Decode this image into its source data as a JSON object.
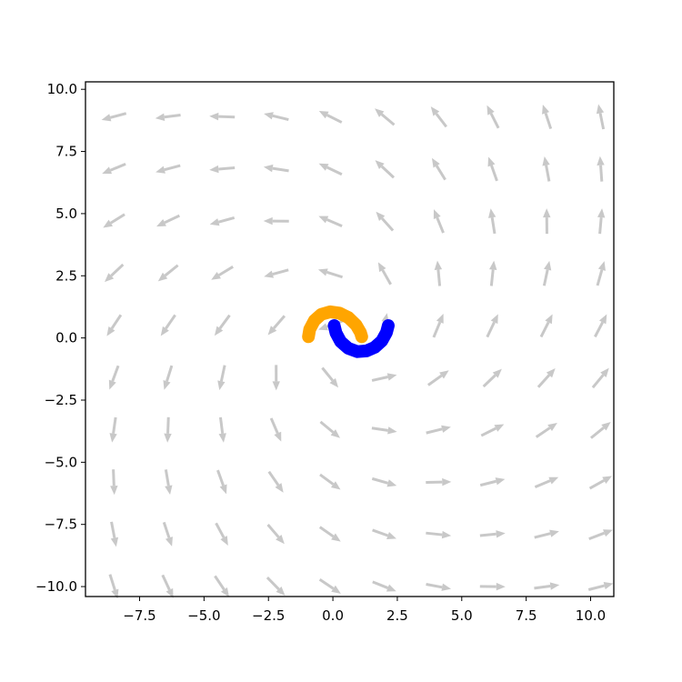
{
  "chart_data": {
    "type": "quiver",
    "title": "",
    "xlabel": "",
    "ylabel": "",
    "xlim": [
      -9.6,
      10.9
    ],
    "ylim": [
      -10.4,
      10.3
    ],
    "xticks": [
      -7.5,
      -5.0,
      -2.5,
      0.0,
      2.5,
      5.0,
      7.5,
      10.0
    ],
    "yticks": [
      -10.0,
      -7.5,
      -5.0,
      -2.5,
      0.0,
      2.5,
      5.0,
      7.5,
      10.0
    ],
    "xtick_labels": [
      "−7.5",
      "−5.0",
      "−2.5",
      "0.0",
      "2.5",
      "5.0",
      "7.5",
      "10.0"
    ],
    "ytick_labels": [
      "−10.0",
      "−7.5",
      "−5.0",
      "−2.5",
      "0.0",
      "2.5",
      "5.0",
      "7.5",
      "10.0"
    ],
    "grid": false,
    "legend": false,
    "vector_field": {
      "color": "#c8c8c8",
      "x": [
        -8.5,
        -6.4,
        -4.3,
        -2.2,
        -0.1,
        2.0,
        4.1,
        6.2,
        8.3,
        10.4
      ],
      "y": [
        -10.0,
        -7.9,
        -5.8,
        -3.7,
        -1.6,
        0.5,
        2.6,
        4.7,
        6.8,
        8.9
      ],
      "center": [
        0.5,
        0.0
      ]
    },
    "series": [
      {
        "color": "#ffa500",
        "x": [
          -0.95,
          -0.9,
          -0.72,
          -0.45,
          -0.1,
          0.25,
          0.6,
          0.9,
          1.07,
          1.12
        ],
        "y": [
          0.05,
          0.35,
          0.7,
          0.95,
          1.05,
          1.0,
          0.82,
          0.52,
          0.22,
          0.05
        ]
      },
      {
        "color": "#0000ff",
        "x": [
          0.05,
          0.12,
          0.3,
          0.6,
          0.95,
          1.3,
          1.62,
          1.9,
          2.08,
          2.15
        ],
        "y": [
          0.5,
          0.2,
          -0.15,
          -0.42,
          -0.55,
          -0.52,
          -0.38,
          -0.12,
          0.22,
          0.5
        ]
      }
    ]
  }
}
